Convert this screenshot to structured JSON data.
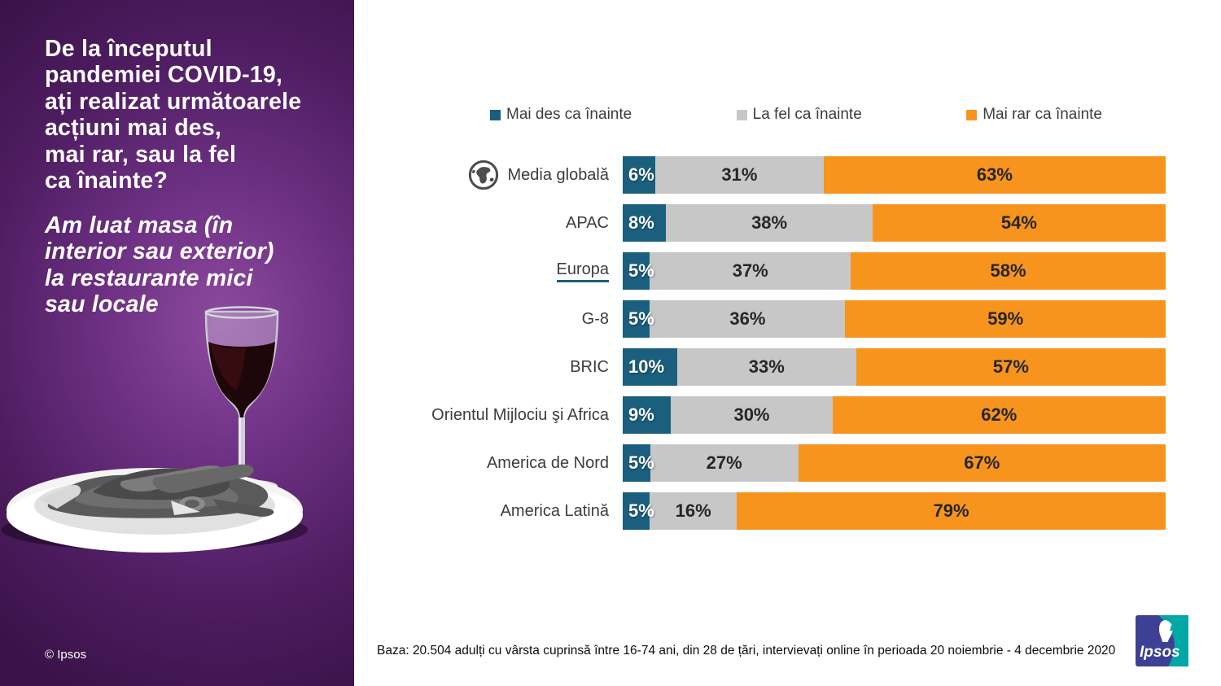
{
  "left_panel": {
    "title": "De la începutul\npandemiei COVID-19,\nați realizat următoarele\nacțiuni mai des,\nmai rar, sau la fel\nca înainte?",
    "subtitle": "Am luat masa (în\ninterior sau exterior)\nla restaurante mici\nsau locale",
    "copyright": "© Ipsos",
    "background_color_center": "#8d4a9e",
    "background_color_edge": "#3b1249",
    "artwork_description": "grayscale photo of a plate of grilled food with a glass of red wine"
  },
  "chart_data": {
    "type": "bar",
    "stacked": true,
    "orientation": "horizontal",
    "legend_position": "top",
    "xlim": [
      0,
      100
    ],
    "value_suffix": "%",
    "categories": [
      "Media globală",
      "APAC",
      "Europa",
      "G-8",
      "BRIC",
      "Orientul Mijlociu şi Africa",
      "America de Nord",
      "America Latină"
    ],
    "series": [
      {
        "name": "Mai des ca înainte",
        "color": "#1A5F7E",
        "values": [
          6,
          8,
          5,
          5,
          10,
          9,
          5,
          5
        ]
      },
      {
        "name": "La fel ca înainte",
        "color": "#C7C7C7",
        "values": [
          31,
          38,
          37,
          36,
          33,
          30,
          27,
          16
        ]
      },
      {
        "name": "Mai rar ca înainte",
        "color": "#F7941D",
        "values": [
          63,
          54,
          58,
          59,
          57,
          62,
          67,
          79
        ]
      }
    ],
    "highlighted_category": "Europa",
    "globe_icon_category": "Media globală"
  },
  "footer": {
    "base_note": "Baza: 20.504 adulți cu vârsta cuprinsă între 16-74 ani, din 28 de țări, intervievați online în perioada 20 noiembrie - 4 decembrie 2020",
    "logo_text": "Ipsos"
  }
}
